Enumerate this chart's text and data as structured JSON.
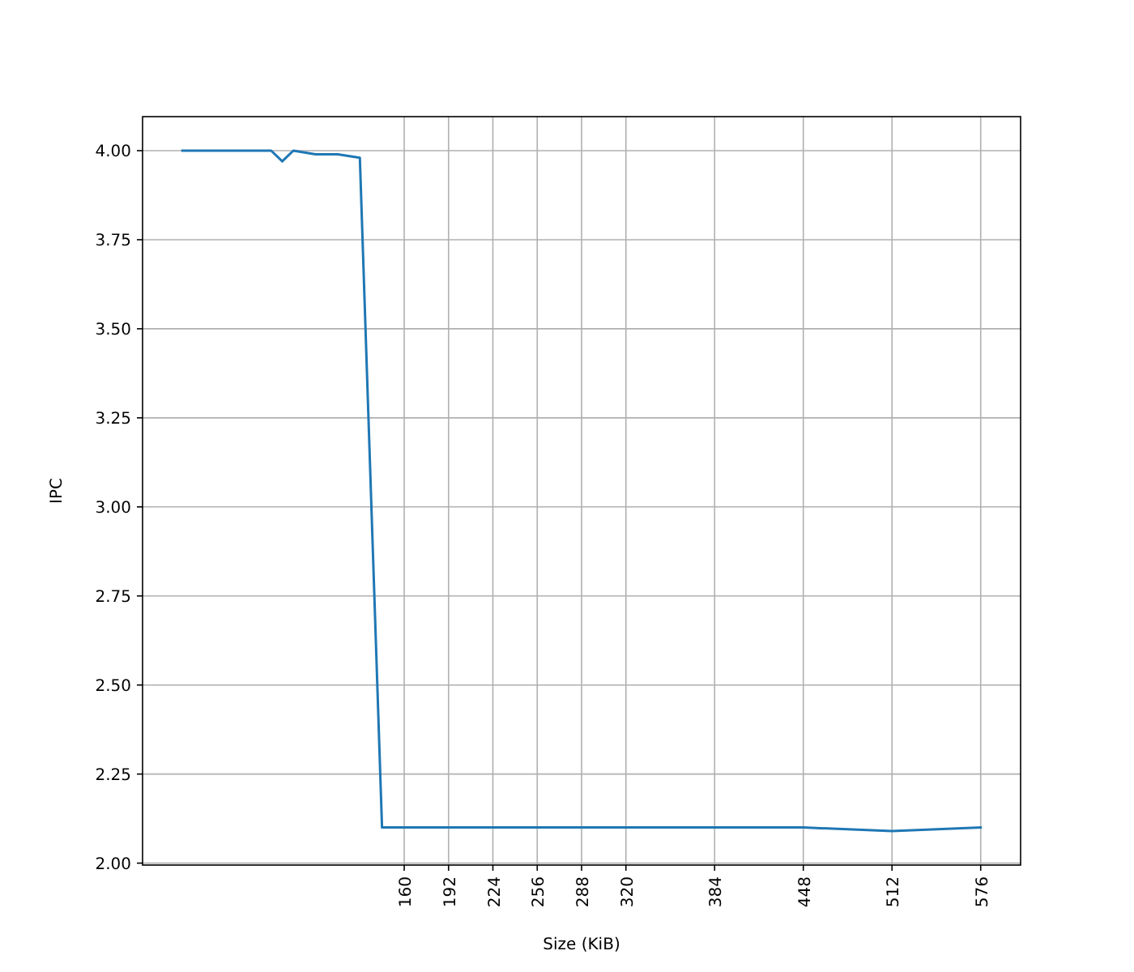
{
  "chart_data": {
    "type": "line",
    "xlabel": "Size (KiB)",
    "ylabel": "IPC",
    "x": [
      0,
      64,
      72,
      80,
      96,
      112,
      128,
      144,
      448,
      512,
      576
    ],
    "series": [
      {
        "color": "#1f77b4",
        "values": [
          4.0,
          4.0,
          3.97,
          4.0,
          3.99,
          3.99,
          3.98,
          2.1,
          2.1,
          2.09,
          2.1
        ]
      }
    ],
    "xlim": [
      -28.8,
      604.8
    ],
    "xticks": [
      160,
      192,
      224,
      256,
      288,
      320,
      384,
      448,
      512,
      576
    ],
    "ylim": [
      1.9945,
      4.0955
    ],
    "yticks": [
      {
        "value": 2,
        "label": "2.00"
      },
      {
        "value": 2.25,
        "label": "2.25"
      },
      {
        "value": 2.5,
        "label": "2.50"
      },
      {
        "value": 2.75,
        "label": "2.75"
      },
      {
        "value": 3,
        "label": "3.00"
      },
      {
        "value": 3.25,
        "label": "3.25"
      },
      {
        "value": 3.5,
        "label": "3.50"
      },
      {
        "value": 3.75,
        "label": "3.75"
      },
      {
        "value": 4,
        "label": "4.00"
      }
    ],
    "grid": true
  }
}
